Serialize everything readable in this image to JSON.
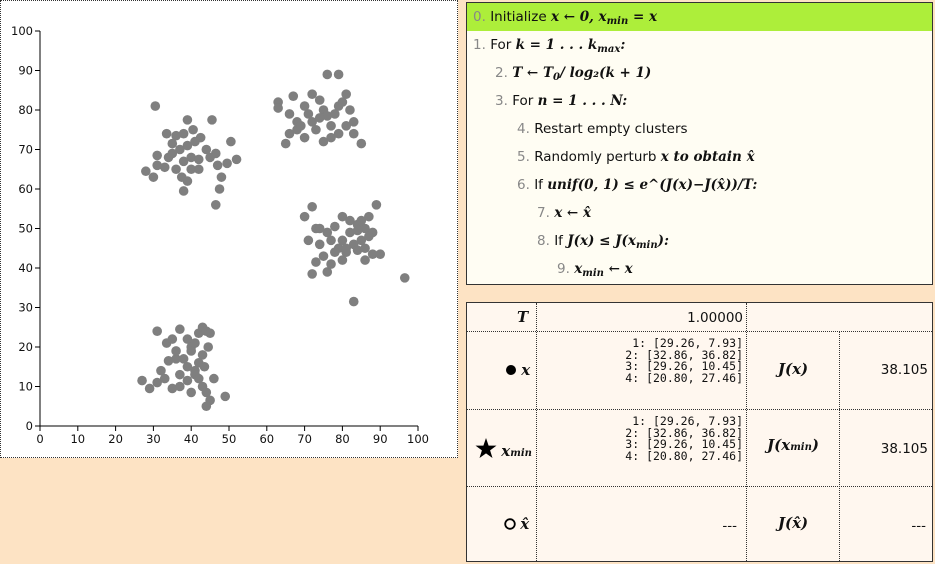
{
  "chart_data": {
    "type": "scatter",
    "xlim": [
      0,
      100
    ],
    "ylim": [
      0,
      100
    ],
    "xticks": [
      "0",
      "10",
      "20",
      "30",
      "40",
      "50",
      "60",
      "70",
      "80",
      "90",
      "100"
    ],
    "yticks": [
      "0",
      "10",
      "20",
      "30",
      "40",
      "50",
      "60",
      "70",
      "80",
      "90",
      "100"
    ],
    "grid": false,
    "point_color": "#7f7f7f",
    "points": [
      [
        30.5,
        81
      ],
      [
        33.5,
        74
      ],
      [
        36,
        73.5
      ],
      [
        39,
        77.5
      ],
      [
        40.5,
        75
      ],
      [
        42.5,
        73
      ],
      [
        39,
        71
      ],
      [
        37,
        70
      ],
      [
        35,
        71.5
      ],
      [
        34,
        68
      ],
      [
        31,
        68.5
      ],
      [
        31,
        66
      ],
      [
        28,
        64.5
      ],
      [
        30,
        63
      ],
      [
        33,
        65.5
      ],
      [
        36,
        65
      ],
      [
        38,
        67
      ],
      [
        40,
        68
      ],
      [
        42,
        67.5
      ],
      [
        44,
        70
      ],
      [
        45.5,
        77.5
      ],
      [
        46.5,
        69
      ],
      [
        47,
        66
      ],
      [
        49.5,
        66.5
      ],
      [
        52,
        67.5
      ],
      [
        50.5,
        72
      ],
      [
        48,
        63
      ],
      [
        47.5,
        60
      ],
      [
        46.5,
        56
      ],
      [
        40,
        65
      ],
      [
        39,
        62
      ],
      [
        38,
        59.5
      ],
      [
        37.5,
        63
      ],
      [
        42,
        65
      ],
      [
        45,
        68
      ],
      [
        35,
        69
      ],
      [
        38,
        74
      ],
      [
        41,
        72
      ],
      [
        63,
        82
      ],
      [
        63,
        80.5
      ],
      [
        66,
        79
      ],
      [
        67,
        83.5
      ],
      [
        68,
        77
      ],
      [
        70,
        81
      ],
      [
        72,
        84
      ],
      [
        74,
        82.5
      ],
      [
        75,
        80
      ],
      [
        76,
        78.5
      ],
      [
        77,
        76
      ],
      [
        78,
        79
      ],
      [
        79,
        81
      ],
      [
        80,
        82
      ],
      [
        81,
        84
      ],
      [
        82,
        80
      ],
      [
        83,
        77
      ],
      [
        83,
        74
      ],
      [
        85,
        71.5
      ],
      [
        81,
        76
      ],
      [
        79,
        74
      ],
      [
        77,
        73
      ],
      [
        75,
        72
      ],
      [
        73,
        75
      ],
      [
        72,
        77
      ],
      [
        70,
        73
      ],
      [
        68,
        75
      ],
      [
        66,
        74
      ],
      [
        65,
        71.5
      ],
      [
        76,
        89
      ],
      [
        79,
        89
      ],
      [
        74,
        78
      ],
      [
        71,
        79
      ],
      [
        69,
        76
      ],
      [
        70,
        53
      ],
      [
        72,
        55.5
      ],
      [
        73,
        50
      ],
      [
        71,
        47
      ],
      [
        74,
        46
      ],
      [
        76,
        49
      ],
      [
        78,
        50.5
      ],
      [
        80,
        53
      ],
      [
        82,
        52
      ],
      [
        84,
        51
      ],
      [
        86,
        50
      ],
      [
        87,
        53
      ],
      [
        89,
        56
      ],
      [
        88,
        49
      ],
      [
        86,
        45
      ],
      [
        85,
        47
      ],
      [
        83,
        46
      ],
      [
        81,
        44
      ],
      [
        79,
        45
      ],
      [
        77,
        47
      ],
      [
        75,
        43
      ],
      [
        73,
        41.5
      ],
      [
        72,
        38.5
      ],
      [
        76,
        39
      ],
      [
        78,
        44
      ],
      [
        80,
        47
      ],
      [
        82,
        49
      ],
      [
        84,
        49.5
      ],
      [
        86,
        42
      ],
      [
        88,
        43.5
      ],
      [
        90,
        43.5
      ],
      [
        83,
        31.5
      ],
      [
        96.5,
        37.5
      ],
      [
        84,
        44.5
      ],
      [
        80,
        42
      ],
      [
        77,
        41
      ],
      [
        74,
        50
      ],
      [
        81,
        45
      ],
      [
        87,
        48
      ],
      [
        85,
        52
      ],
      [
        31,
        24
      ],
      [
        33.5,
        21
      ],
      [
        35,
        22
      ],
      [
        37,
        24.5
      ],
      [
        39,
        22
      ],
      [
        40,
        20
      ],
      [
        42,
        23.5
      ],
      [
        43,
        25
      ],
      [
        44,
        24
      ],
      [
        45,
        23.5
      ],
      [
        44.5,
        20
      ],
      [
        43,
        18
      ],
      [
        42,
        16
      ],
      [
        41,
        14
      ],
      [
        39,
        15
      ],
      [
        37,
        13
      ],
      [
        36,
        17
      ],
      [
        34,
        16.5
      ],
      [
        32,
        14
      ],
      [
        31,
        11
      ],
      [
        29,
        9.5
      ],
      [
        33,
        12
      ],
      [
        35,
        9.5
      ],
      [
        37,
        10
      ],
      [
        39,
        11.5
      ],
      [
        40,
        8.5
      ],
      [
        41,
        13
      ],
      [
        42,
        12
      ],
      [
        43,
        10
      ],
      [
        44,
        8.5
      ],
      [
        45,
        6.5
      ],
      [
        44,
        5
      ],
      [
        49,
        7.5
      ],
      [
        46,
        12
      ],
      [
        43.5,
        15
      ],
      [
        38,
        17
      ],
      [
        40,
        19
      ],
      [
        27,
        11.5
      ],
      [
        41,
        21
      ],
      [
        36,
        19
      ]
    ]
  },
  "algorithm": {
    "steps": [
      {
        "num": "0.",
        "pre": "Initialize ",
        "math": "x ← 0, x",
        "sub": "min",
        "post": " = x",
        "active": true
      },
      {
        "num": "1.",
        "pre": "For ",
        "math": "k = 1 . . . k",
        "sub": "max",
        "post": ":"
      },
      {
        "num": "2.",
        "pre": "",
        "math": "T ← T",
        "sub": "0",
        "post": "/ log₂(k + 1)"
      },
      {
        "num": "3.",
        "pre": "For ",
        "math": "n = 1 . . . N",
        "sub": "",
        "post": ":"
      },
      {
        "num": "4.",
        "pre": "Restart empty clusters",
        "math": "",
        "sub": "",
        "post": ""
      },
      {
        "num": "5.",
        "pre": "Randomly perturb ",
        "math": "x",
        "sub": "",
        "post": " to obtain x̂"
      },
      {
        "num": "6.",
        "pre": "If ",
        "math": "unif(0, 1) ≤ e",
        "sub": "",
        "post": "^(J(x)−J(x̂))/T:"
      },
      {
        "num": "7.",
        "pre": "",
        "math": "x ← x̂",
        "sub": "",
        "post": ""
      },
      {
        "num": "8.",
        "pre": "If ",
        "math": "J(x) ≤ J(x",
        "sub": "min",
        "post": "):"
      },
      {
        "num": "9.",
        "pre": "",
        "math": "x",
        "sub": "min",
        "post": " ← x"
      }
    ]
  },
  "state": {
    "t_label": "T",
    "t_value": "1.00000",
    "x_label": "x",
    "x_values": [
      "1: [29.26, 7.93]",
      "2: [32.86, 36.82]",
      "3: [29.26, 10.45]",
      "4: [20.80, 27.46]"
    ],
    "jx_label": "J(x)",
    "jx_value": "38.105",
    "xmin_label": "x",
    "xmin_sub": "min",
    "xmin_values": [
      "1: [29.26, 7.93]",
      "2: [32.86, 36.82]",
      "3: [29.26, 10.45]",
      "4: [20.80, 27.46]"
    ],
    "jxmin_label": "J(x",
    "jxmin_sub": "min",
    "jxmin_post": ")",
    "jxmin_value": "38.105",
    "xhat_label": "x̂",
    "xhat_value": "---",
    "jxhat_label": "J(x̂)",
    "jxhat_value": "---"
  }
}
